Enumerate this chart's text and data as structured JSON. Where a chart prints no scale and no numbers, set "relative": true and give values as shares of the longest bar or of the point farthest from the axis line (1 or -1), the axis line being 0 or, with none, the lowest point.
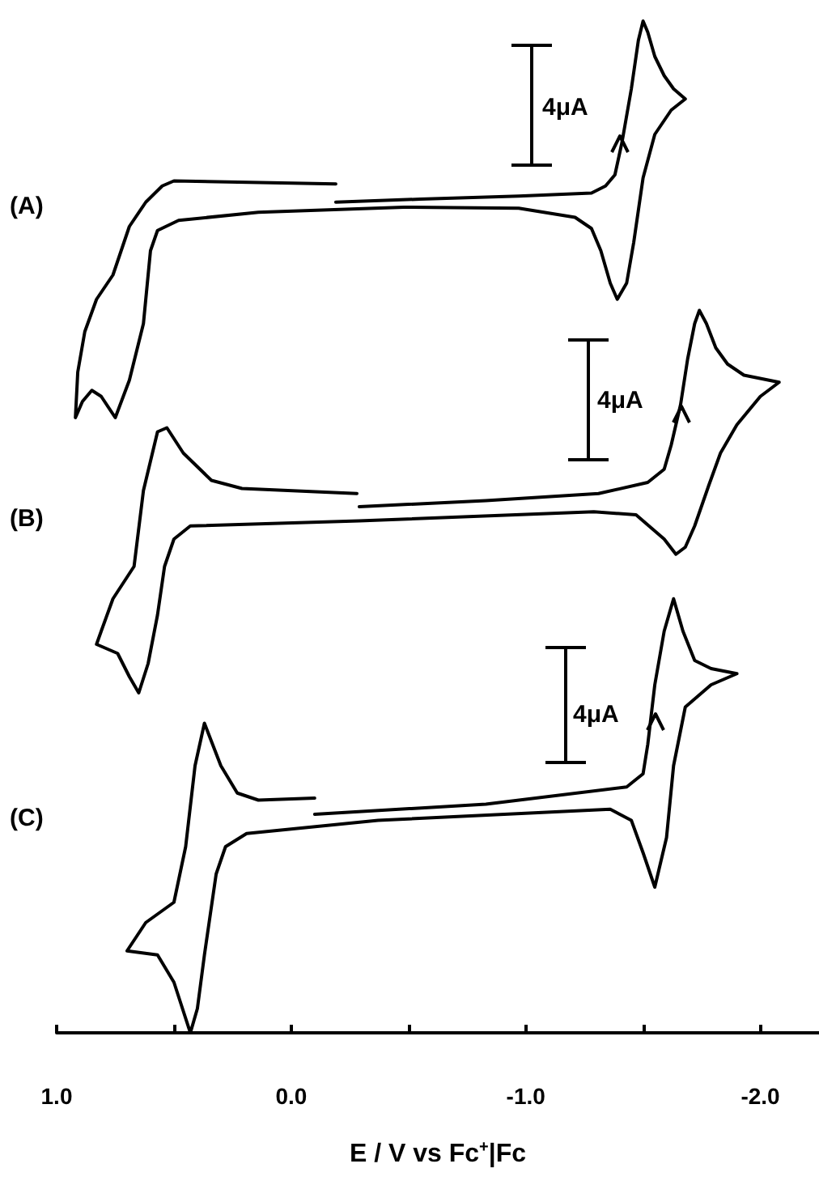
{
  "chart_data": {
    "type": "line",
    "relative": true,
    "marker": "none",
    "xlabel": "E / V vs Fc$^{+}$|Fc",
    "xlim": [
      1,
      -2.25
    ],
    "xticks": [
      {
        "value": 1,
        "label": "1.0"
      },
      {
        "value": 0.5,
        "label": null
      },
      {
        "value": 0,
        "label": "0.0"
      },
      {
        "value": -0.5,
        "label": null
      },
      {
        "value": -1,
        "label": "-1.0"
      },
      {
        "value": -1.5,
        "label": null
      },
      {
        "value": -2,
        "label": "-2.0"
      }
    ],
    "annotations": [
      "(A)",
      "4μA",
      "(B)",
      "4μA",
      "(C)",
      "4μA"
    ],
    "series": [
      {
        "color": "#000000",
        "x": [
          -0.19,
          -0.55,
          -0.97,
          -1.28,
          -1.34,
          -1.38,
          -1.41,
          -1.45,
          -1.48,
          -1.5,
          -1.52,
          -1.55,
          -1.59,
          -1.63,
          -1.68,
          -1.62,
          -1.55,
          -1.5,
          -1.46,
          -1.43,
          -1.39,
          -1.36,
          -1.32,
          -1.28,
          -1.21,
          -0.97,
          -0.48,
          0.14,
          0.48,
          0.57,
          0.6,
          0.63,
          0.69,
          0.75,
          0.81,
          0.85,
          0.89,
          0.92,
          0.91,
          0.88,
          0.83,
          0.76,
          0.69,
          0.62,
          0.55,
          0.5,
          -0.19
        ],
        "values": [
          0.821,
          0.824,
          0.827,
          0.83,
          0.837,
          0.848,
          0.88,
          0.933,
          0.981,
          1.0,
          0.989,
          0.965,
          0.946,
          0.933,
          0.923,
          0.912,
          0.888,
          0.845,
          0.781,
          0.741,
          0.725,
          0.741,
          0.773,
          0.795,
          0.806,
          0.815,
          0.816,
          0.811,
          0.803,
          0.793,
          0.773,
          0.701,
          0.645,
          0.608,
          0.629,
          0.635,
          0.624,
          0.608,
          0.653,
          0.693,
          0.725,
          0.749,
          0.797,
          0.821,
          0.837,
          0.842,
          0.839
        ]
      },
      {
        "color": "#000000",
        "x": [
          -0.29,
          -0.83,
          -1.31,
          -1.52,
          -1.59,
          -1.62,
          -1.66,
          -1.69,
          -1.72,
          -1.74,
          -1.77,
          -1.81,
          -1.86,
          -1.93,
          -2.08,
          -2.0,
          -1.9,
          -1.83,
          -1.78,
          -1.72,
          -1.68,
          -1.64,
          -1.59,
          -1.47,
          -1.29,
          -0.29,
          0.43,
          0.5,
          0.54,
          0.57,
          0.61,
          0.65,
          0.69,
          0.74,
          0.83,
          0.81,
          0.76,
          0.67,
          0.63,
          0.57,
          0.53,
          0.46,
          0.34,
          0.21,
          -0.28
        ],
        "values": [
          0.52,
          0.526,
          0.533,
          0.544,
          0.557,
          0.581,
          0.621,
          0.666,
          0.701,
          0.714,
          0.701,
          0.677,
          0.661,
          0.65,
          0.643,
          0.629,
          0.601,
          0.573,
          0.541,
          0.501,
          0.48,
          0.473,
          0.488,
          0.512,
          0.515,
          0.506,
          0.501,
          0.488,
          0.461,
          0.413,
          0.365,
          0.336,
          0.352,
          0.375,
          0.384,
          0.397,
          0.429,
          0.461,
          0.536,
          0.594,
          0.598,
          0.573,
          0.546,
          0.538,
          0.533
        ]
      },
      {
        "color": "#000000",
        "x": [
          -0.1,
          -0.83,
          -1.43,
          -1.5,
          -1.52,
          -1.55,
          -1.59,
          -1.63,
          -1.67,
          -1.72,
          -1.79,
          -1.9,
          -1.79,
          -1.68,
          -1.63,
          -1.6,
          -1.55,
          -1.5,
          -1.45,
          -1.36,
          -0.37,
          0.19,
          0.28,
          0.32,
          0.37,
          0.4,
          0.43,
          0.5,
          0.57,
          0.7,
          0.62,
          0.5,
          0.45,
          0.41,
          0.37,
          0.3,
          0.23,
          0.14,
          -0.1
        ],
        "values": [
          0.216,
          0.226,
          0.243,
          0.256,
          0.285,
          0.344,
          0.397,
          0.429,
          0.397,
          0.368,
          0.36,
          0.355,
          0.344,
          0.322,
          0.264,
          0.193,
          0.144,
          0.178,
          0.21,
          0.221,
          0.21,
          0.197,
          0.184,
          0.157,
          0.077,
          0.024,
          0,
          0.05,
          0.077,
          0.081,
          0.109,
          0.129,
          0.184,
          0.264,
          0.306,
          0.264,
          0.237,
          0.23,
          0.232
        ]
      }
    ]
  }
}
